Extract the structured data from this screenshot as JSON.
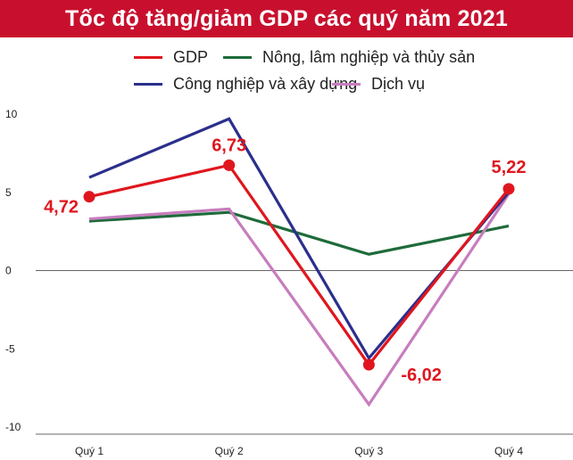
{
  "title": "Tốc độ tăng/giảm GDP các quý năm 2021",
  "chart_data": {
    "type": "line",
    "title": "Tốc độ tăng/giảm GDP các quý năm 2021",
    "categories": [
      "Quý 1",
      "Quý 2",
      "Quý 3",
      "Quý 4"
    ],
    "ylim": [
      -10,
      10
    ],
    "yticks": [
      "10",
      "5",
      "0",
      "-5",
      "-10"
    ],
    "ytick_values": [
      10,
      5,
      0,
      -5,
      -10
    ],
    "grid": "zero-line",
    "legend": "top",
    "series": [
      {
        "name": "GDP",
        "color": "#e0161e",
        "values": [
          4.72,
          6.73,
          -6.02,
          5.22
        ],
        "markers": true,
        "labels": [
          "4,72",
          "6,73",
          "-6,02",
          "5,22"
        ]
      },
      {
        "name": "Nông, lâm nghiệp và thủy sản",
        "color": "#1e6b3a",
        "values": [
          3.16,
          3.72,
          1.04,
          2.85
        ],
        "markers": false
      },
      {
        "name": "Công nghiệp và xây dựng",
        "color": "#2b2f8c",
        "values": [
          5.95,
          9.7,
          -5.6,
          5.0
        ],
        "markers": false
      },
      {
        "name": "Dịch vụ",
        "color": "#c77dbe",
        "values": [
          3.3,
          3.94,
          -8.56,
          4.9
        ],
        "markers": false
      }
    ]
  }
}
